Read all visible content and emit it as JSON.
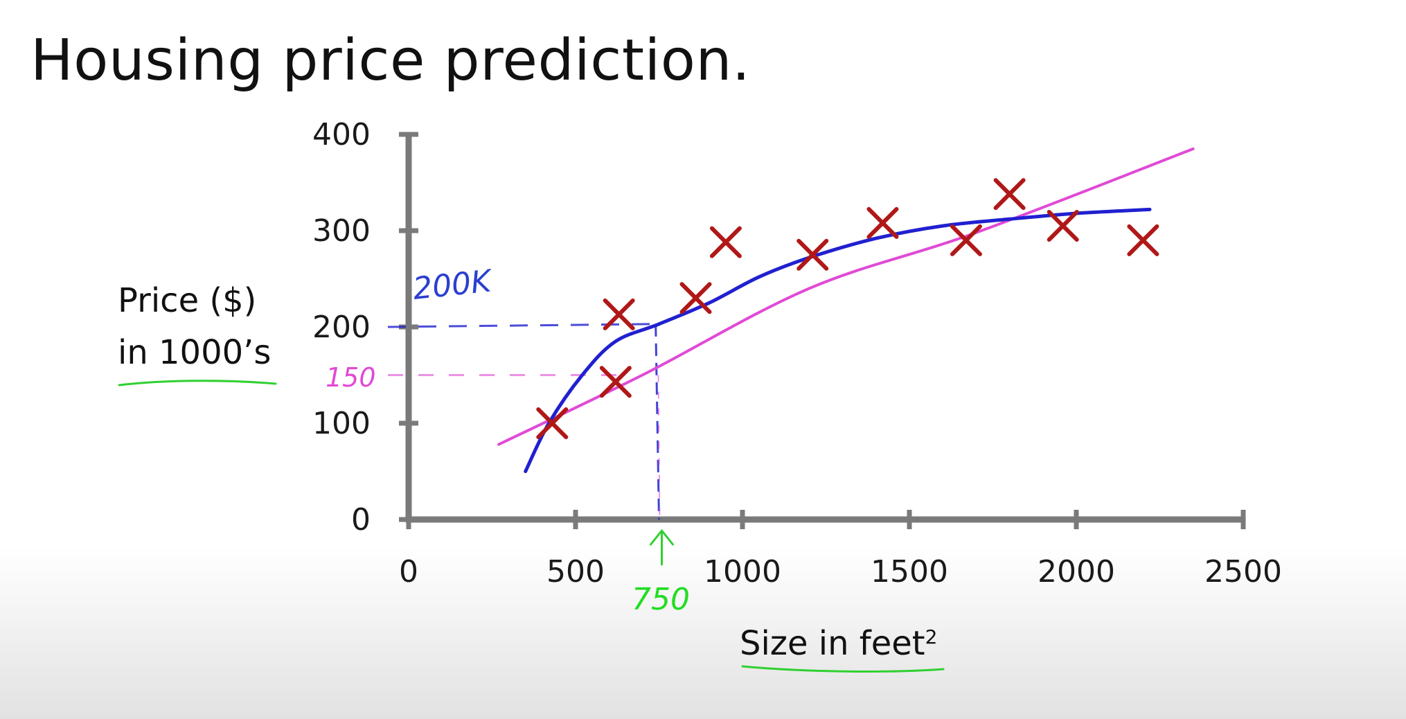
{
  "title": "Housing price prediction.",
  "chart_data": {
    "type": "scatter",
    "title": "Housing price prediction.",
    "xlabel": "Size in feet",
    "xlabel_superscript": "2",
    "ylabel_lines": [
      "Price ($)",
      "in 1000’s"
    ],
    "xlim": [
      0,
      2500
    ],
    "ylim": [
      0,
      400
    ],
    "x_ticks": [
      0,
      500,
      1000,
      1500,
      2000,
      2500
    ],
    "y_ticks": [
      0,
      100,
      200,
      300,
      400
    ],
    "grid": false,
    "marker": "x",
    "points": [
      {
        "x": 430,
        "y": 100
      },
      {
        "x": 620,
        "y": 143
      },
      {
        "x": 630,
        "y": 213
      },
      {
        "x": 860,
        "y": 230
      },
      {
        "x": 950,
        "y": 288
      },
      {
        "x": 1210,
        "y": 275
      },
      {
        "x": 1420,
        "y": 308
      },
      {
        "x": 1670,
        "y": 290
      },
      {
        "x": 1800,
        "y": 338
      },
      {
        "x": 1960,
        "y": 305
      },
      {
        "x": 2200,
        "y": 290
      }
    ],
    "fits": [
      {
        "kind": "straight",
        "points": [
          [
            270,
            78
          ],
          [
            700,
            150
          ],
          [
            1200,
            240
          ],
          [
            1700,
            298
          ],
          [
            2350,
            385
          ]
        ]
      },
      {
        "kind": "curve",
        "points": [
          [
            350,
            50
          ],
          [
            420,
            100
          ],
          [
            520,
            150
          ],
          [
            620,
            185
          ],
          [
            750,
            203
          ],
          [
            900,
            225
          ],
          [
            1050,
            252
          ],
          [
            1200,
            272
          ],
          [
            1400,
            292
          ],
          [
            1600,
            305
          ],
          [
            1800,
            312
          ],
          [
            2000,
            318
          ],
          [
            2220,
            322
          ]
        ]
      }
    ],
    "annotations": [
      {
        "text": "200K",
        "color": "#2b3fcf"
      },
      {
        "text": "150",
        "color": "#e04ad6"
      },
      {
        "text": "750",
        "color": "#22dd22"
      }
    ],
    "colors": {
      "axis": "#7a7a7a",
      "points": "#b01818",
      "straight_fit": "#e04ad6",
      "curve_fit": "#2020d0",
      "underline": "#30d030"
    }
  }
}
